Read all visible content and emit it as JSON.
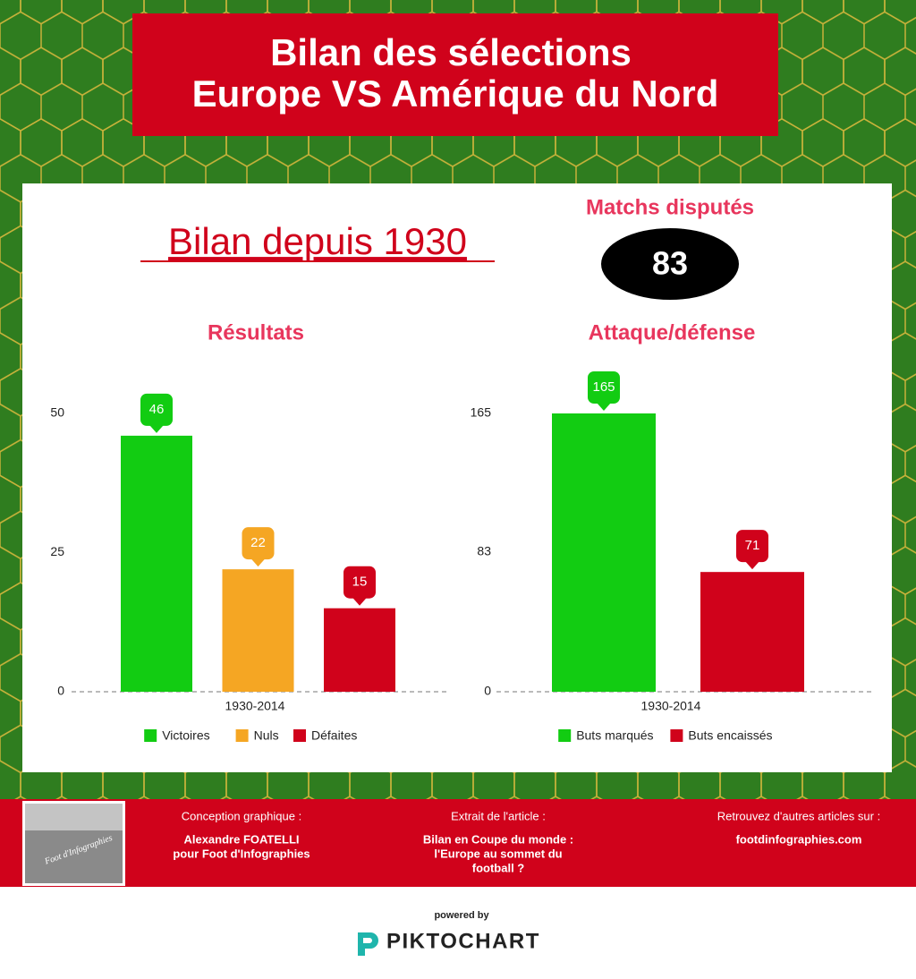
{
  "header": {
    "title_lines": [
      "Bilan des sélections",
      "Europe VS Amérique du Nord"
    ]
  },
  "panel": {
    "heading": "Bilan depuis 1930",
    "matches_label": "Matchs disputés",
    "matches_value": 83
  },
  "chart_data": [
    {
      "type": "bar",
      "title": "Résultats",
      "categories": [
        "1930-2014"
      ],
      "series": [
        {
          "name": "Victoires",
          "color": "#12cc12",
          "values": [
            46
          ]
        },
        {
          "name": "Nuls",
          "color": "#f5a623",
          "values": [
            22
          ]
        },
        {
          "name": "Défaites",
          "color": "#d0021b",
          "values": [
            15
          ]
        }
      ],
      "ylim": [
        0,
        50
      ],
      "yticks": [
        0,
        25,
        50
      ],
      "legend": "bottom"
    },
    {
      "type": "bar",
      "title": "Attaque/défense",
      "categories": [
        "1930-2014"
      ],
      "series": [
        {
          "name": "Buts marqués",
          "color": "#12cc12",
          "values": [
            165
          ]
        },
        {
          "name": "Buts encaissés",
          "color": "#d0021b",
          "values": [
            71
          ]
        }
      ],
      "ylim": [
        0,
        165
      ],
      "yticks": [
        0,
        83,
        165
      ],
      "legend": "bottom"
    }
  ],
  "footer": {
    "photo_caption": "Foot d'Infographies",
    "columns": [
      {
        "heading": "Conception graphique :",
        "lines": [
          "Alexandre FOATELLI",
          "pour Foot d'Infographies"
        ]
      },
      {
        "heading": "Extrait de l'article :",
        "lines": [
          "Bilan en Coupe du monde :",
          "l'Europe au sommet du",
          "football ?"
        ]
      },
      {
        "heading": "Retrouvez d'autres articles sur :",
        "lines": [
          "footdinfographies.com"
        ]
      }
    ]
  },
  "branding": {
    "powered_by": "powered by",
    "name": "PIKTOCHART"
  }
}
